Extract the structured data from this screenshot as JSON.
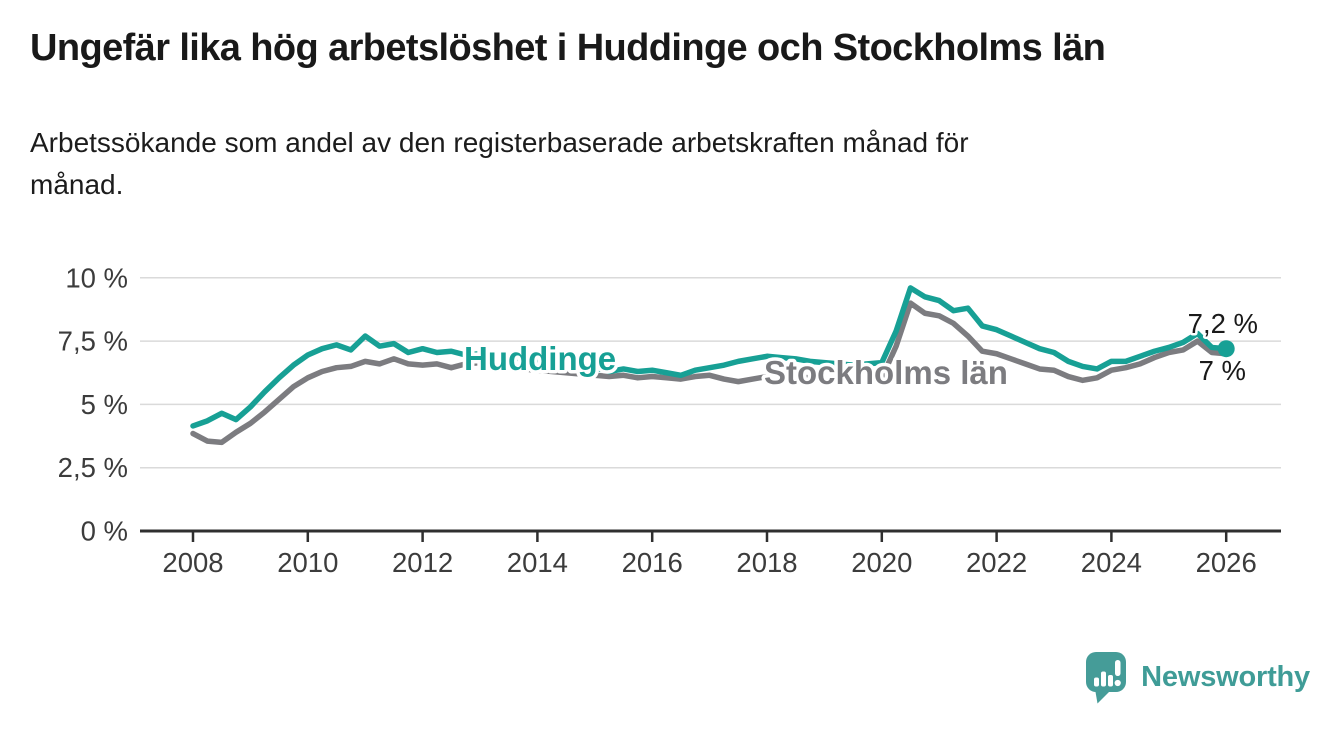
{
  "header": {
    "title": "Ungefär lika hög arbetslöshet i Huddinge och Stockholms län",
    "subtitle_lines": [
      "Arbetssökande som andel av den registerbaserade arbetskraften månad för",
      "månad."
    ]
  },
  "chart_data": {
    "type": "line",
    "title": "Ungefär lika hög arbetslöshet i Huddinge och Stockholms län",
    "subtitle": "Arbetssökande som andel av den registerbaserade arbetskraften månad för månad.",
    "unit": "%",
    "x_start": 2008,
    "x_step": 0.25,
    "x_end": 2026,
    "ylim": [
      0,
      10.5
    ],
    "grid": "horizontal",
    "legend_position": "inline-labels",
    "yticks": {
      "values": [
        0,
        2.5,
        5,
        7.5,
        10
      ],
      "labels": [
        "0 %",
        "2,5 %",
        "5 %",
        "7,5 %",
        "10 %"
      ]
    },
    "xticks": [
      "2008",
      "2010",
      "2012",
      "2014",
      "2016",
      "2018",
      "2020",
      "2022",
      "2024",
      "2026"
    ],
    "series": [
      {
        "name": "Huddinge",
        "color": "#17a095",
        "end_label": "7,2 %",
        "end_dot": true,
        "values": [
          4.15,
          4.35,
          4.65,
          4.4,
          4.9,
          5.5,
          6.05,
          6.55,
          6.95,
          7.2,
          7.35,
          7.15,
          7.7,
          7.3,
          7.4,
          7.05,
          7.2,
          7.05,
          7.1,
          6.95,
          7.0,
          6.9,
          6.85,
          6.8,
          6.75,
          6.7,
          6.6,
          6.55,
          6.45,
          6.3,
          6.4,
          6.3,
          6.35,
          6.25,
          6.15,
          6.35,
          6.45,
          6.55,
          6.7,
          6.8,
          6.9,
          6.85,
          6.8,
          6.7,
          6.65,
          6.6,
          6.55,
          6.6,
          6.65,
          7.9,
          9.6,
          9.25,
          9.1,
          8.7,
          8.8,
          8.1,
          7.95,
          7.7,
          7.45,
          7.2,
          7.05,
          6.7,
          6.5,
          6.4,
          6.7,
          6.7,
          6.9,
          7.1,
          7.25,
          7.45,
          7.8,
          7.25,
          7.2
        ]
      },
      {
        "name": "Stockholms län",
        "color": "#7c7c80",
        "end_label": "7 %",
        "end_dot": false,
        "values": [
          3.85,
          3.55,
          3.5,
          3.9,
          4.25,
          4.7,
          5.2,
          5.7,
          6.05,
          6.3,
          6.45,
          6.5,
          6.7,
          6.6,
          6.8,
          6.6,
          6.55,
          6.6,
          6.45,
          6.6,
          6.65,
          6.5,
          6.45,
          6.4,
          6.35,
          6.3,
          6.25,
          6.2,
          6.15,
          6.1,
          6.15,
          6.05,
          6.1,
          6.05,
          6.0,
          6.1,
          6.15,
          6.0,
          5.9,
          6.0,
          6.1,
          6.15,
          6.1,
          6.05,
          6.0,
          5.95,
          5.9,
          5.95,
          6.05,
          7.3,
          9.0,
          8.6,
          8.5,
          8.2,
          7.7,
          7.1,
          7.0,
          6.8,
          6.6,
          6.4,
          6.35,
          6.1,
          5.95,
          6.05,
          6.35,
          6.45,
          6.6,
          6.85,
          7.05,
          7.15,
          7.5,
          7.05,
          7.0
        ]
      }
    ],
    "colors": {
      "grid": "#dadada",
      "axis": "#2f2f2f",
      "tick_text": "#3c3c3c",
      "value_label_text": "#1a1a1a"
    }
  },
  "footer": {
    "brand": "Newsworthy",
    "brand_color": "#3f9c97"
  }
}
